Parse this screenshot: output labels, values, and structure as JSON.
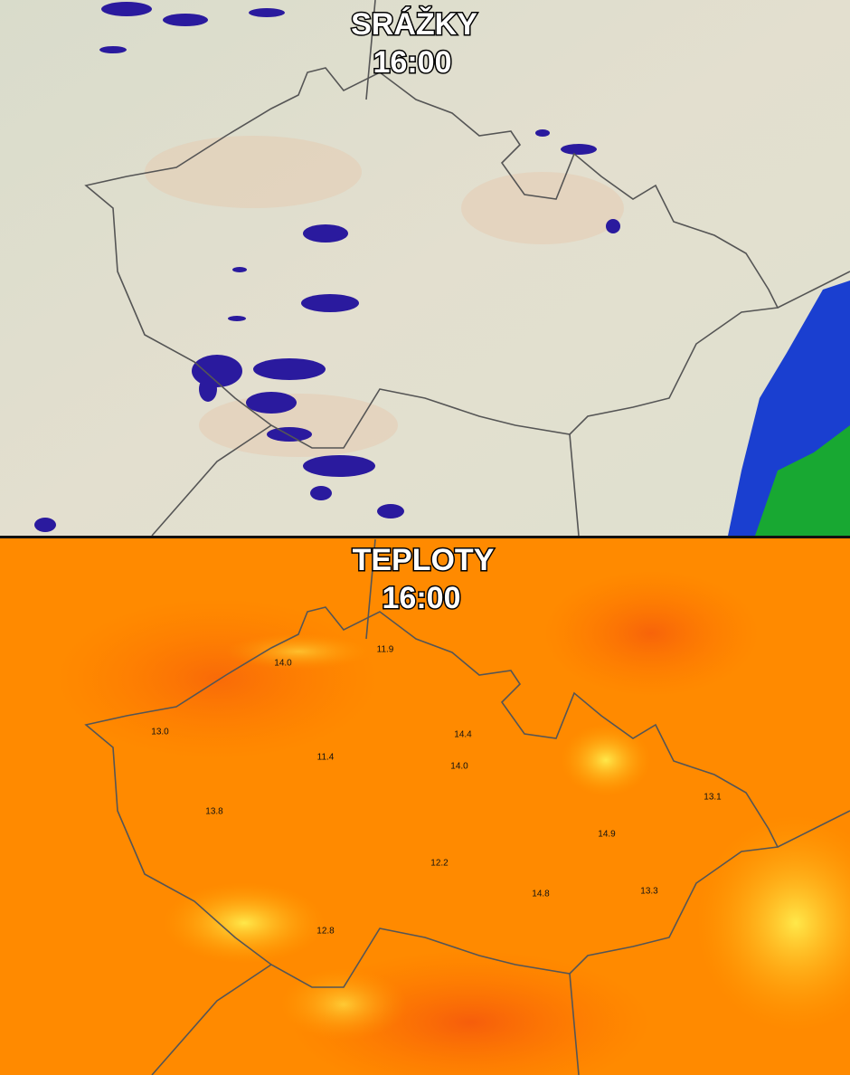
{
  "panels": [
    {
      "title": "SRÁŽKY",
      "time": "16:00"
    },
    {
      "title": "TEPLOTY",
      "time": "16:00",
      "labels": [
        "14.0",
        "11.9",
        "13.0",
        "14.4",
        "11.4",
        "14.0",
        "13.8",
        "13.1",
        "14.9",
        "12.2",
        "14.8",
        "13.3",
        "12.8"
      ]
    }
  ]
}
